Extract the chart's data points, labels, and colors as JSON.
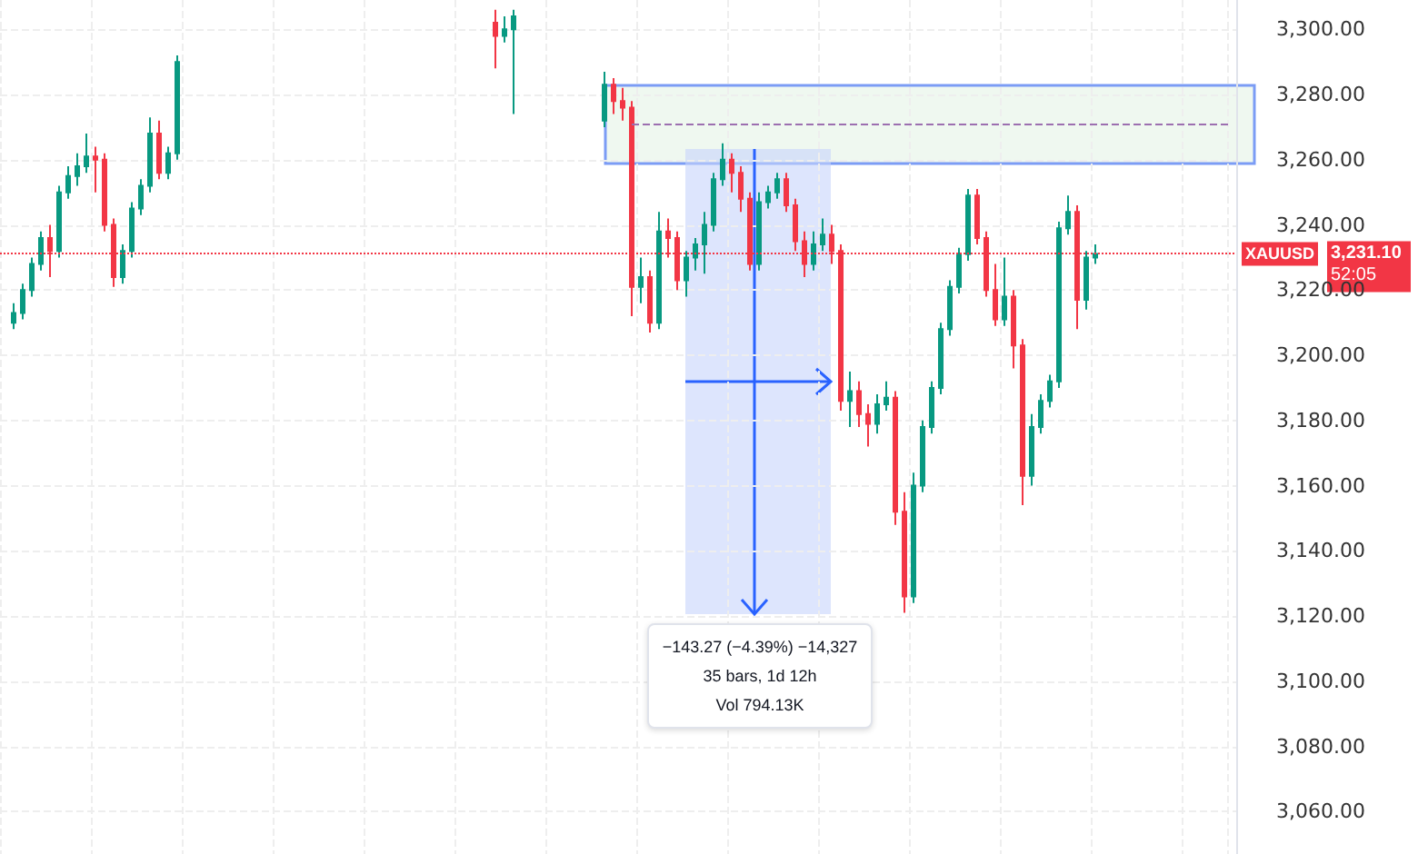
{
  "chart_data": {
    "type": "candlestick",
    "categories": [
      null,
      null,
      null,
      null,
      null,
      null,
      null,
      null,
      null,
      null,
      null,
      null,
      null,
      null,
      null,
      null,
      null,
      null,
      null,
      null,
      null,
      null,
      null,
      null,
      null,
      null,
      null,
      null,
      null,
      null,
      null,
      null,
      null,
      null,
      null,
      null,
      null,
      null,
      null,
      null,
      null,
      null,
      null,
      null,
      null,
      null,
      null,
      null,
      null,
      null,
      null,
      null,
      null,
      null,
      null,
      null,
      null,
      null,
      null,
      null,
      null,
      null,
      null,
      null,
      null,
      null,
      null,
      null,
      null,
      null,
      null,
      null,
      null,
      null,
      null,
      null,
      null,
      null,
      null,
      null,
      null,
      null,
      null,
      null,
      null,
      null,
      null,
      null,
      null,
      null,
      null,
      null,
      null,
      null,
      null,
      null,
      null,
      null,
      null,
      null,
      null,
      null,
      null,
      null,
      null,
      null,
      null,
      null,
      null,
      null,
      null,
      null,
      null,
      null,
      null,
      null,
      null,
      null,
      null,
      null,
      null,
      null,
      null,
      null,
      null,
      null,
      null,
      null,
      null,
      null,
      null,
      null,
      null,
      null,
      null,
      null
    ],
    "ohlc": [
      null,
      [
        3210,
        3216,
        3208,
        3213
      ],
      [
        3213,
        3222,
        3211,
        3220
      ],
      [
        3220,
        3230,
        3218,
        3228
      ],
      [
        3228,
        3238,
        3226,
        3236
      ],
      [
        3236,
        3240,
        3224,
        3232
      ],
      [
        3232,
        3252,
        3230,
        3250
      ],
      [
        3250,
        3258,
        3248,
        3255
      ],
      [
        3255,
        3262,
        3252,
        3258
      ],
      [
        3258,
        3268,
        3256,
        3261
      ],
      [
        3261,
        3264,
        3250,
        3260
      ],
      [
        3260,
        3262,
        3238,
        3240
      ],
      [
        3240,
        3242,
        3221,
        3224
      ],
      [
        3224,
        3234,
        3222,
        3232
      ],
      [
        3232,
        3247,
        3230,
        3245
      ],
      [
        3245,
        3254,
        3243,
        3252
      ],
      [
        3252,
        3273,
        3250,
        3268
      ],
      [
        3268,
        3272,
        3254,
        3256
      ],
      [
        3256,
        3264,
        3254,
        3262
      ],
      [
        3262,
        3292,
        3260,
        3290
      ],
      null,
      null,
      null,
      null,
      null,
      null,
      null,
      null,
      null,
      null,
      null,
      null,
      null,
      null,
      null,
      null,
      null,
      null,
      null,
      null,
      null,
      null,
      null,
      null,
      null,
      null,
      null,
      null,
      null,
      null,
      null,
      null,
      null,
      null,
      [
        3302,
        3306,
        3288,
        3298
      ],
      [
        3298,
        3304,
        3296,
        3300
      ],
      [
        3300,
        3306,
        3274,
        3304
      ],
      null,
      null,
      null,
      null,
      null,
      null,
      null,
      null,
      null,
      [
        3272,
        3287,
        3270,
        3283
      ],
      [
        3283,
        3285,
        3274,
        3278
      ],
      [
        3278,
        3282,
        3272,
        3276
      ],
      [
        3276,
        3278,
        3212,
        3221
      ],
      [
        3221,
        3230,
        3216,
        3224
      ],
      [
        3224,
        3226,
        3207,
        3210
      ],
      [
        3210,
        3244,
        3208,
        3238
      ],
      [
        3238,
        3242,
        3230,
        3236
      ],
      [
        3236,
        3238,
        3220,
        3223
      ],
      [
        3223,
        3232,
        3218,
        3230
      ],
      [
        3230,
        3236,
        3226,
        3234
      ],
      [
        3234,
        3244,
        3225,
        3240
      ],
      [
        3240,
        3256,
        3238,
        3254
      ],
      [
        3254,
        3265,
        3252,
        3260
      ],
      [
        3260,
        3262,
        3250,
        3256
      ],
      [
        3256,
        3258,
        3244,
        3248
      ],
      [
        3248,
        3250,
        3226,
        3228
      ],
      [
        3228,
        3250,
        3226,
        3247
      ],
      [
        3247,
        3252,
        3245,
        3250
      ],
      [
        3250,
        3256,
        3248,
        3254
      ],
      [
        3254,
        3256,
        3244,
        3246
      ],
      [
        3246,
        3248,
        3232,
        3235
      ],
      [
        3235,
        3238,
        3224,
        3228
      ],
      [
        3228,
        3238,
        3226,
        3234
      ],
      [
        3234,
        3242,
        3232,
        3237
      ],
      [
        3237,
        3240,
        3228,
        3232
      ],
      [
        3232,
        3234,
        3183,
        3186
      ],
      [
        3186,
        3195,
        3178,
        3189
      ],
      [
        3189,
        3192,
        3178,
        3182
      ],
      [
        3182,
        3185,
        3172,
        3179
      ],
      [
        3179,
        3188,
        3176,
        3185
      ],
      [
        3185,
        3192,
        3183,
        3187
      ],
      [
        3187,
        3189,
        3148,
        3152
      ],
      [
        3152,
        3158,
        3121,
        3126
      ],
      [
        3126,
        3164,
        3124,
        3160
      ],
      [
        3160,
        3180,
        3158,
        3178
      ],
      [
        3178,
        3192,
        3176,
        3190
      ],
      [
        3190,
        3210,
        3188,
        3208
      ],
      [
        3208,
        3223,
        3206,
        3221
      ],
      [
        3221,
        3233,
        3219,
        3231
      ],
      [
        3231,
        3251,
        3229,
        3249
      ],
      [
        3249,
        3251,
        3234,
        3236
      ],
      [
        3236,
        3238,
        3218,
        3220
      ],
      [
        3220,
        3228,
        3209,
        3211
      ],
      [
        3211,
        3230,
        3209,
        3218
      ],
      [
        3218,
        3220,
        3196,
        3203
      ],
      [
        3203,
        3205,
        3154,
        3163
      ],
      [
        3163,
        3182,
        3160,
        3178
      ],
      [
        3178,
        3188,
        3176,
        3186
      ],
      [
        3186,
        3194,
        3184,
        3192
      ],
      [
        3192,
        3241,
        3190,
        3239
      ],
      [
        3239,
        3249,
        3237,
        3244
      ],
      [
        3244,
        3246,
        3208,
        3217
      ],
      [
        3217,
        3232,
        3214,
        3230
      ],
      [
        3230,
        3234,
        3228,
        3231.1
      ],
      null,
      null,
      null,
      null,
      null,
      null,
      null,
      null,
      null,
      null,
      null,
      null,
      null,
      null,
      null
    ],
    "ylim": [
      3047,
      3309
    ],
    "yticks": [
      {
        "value": 3060,
        "label": "3,060.00"
      },
      {
        "value": 3080,
        "label": "3,080.00"
      },
      {
        "value": 3100,
        "label": "3,100.00"
      },
      {
        "value": 3120,
        "label": "3,120.00"
      },
      {
        "value": 3140,
        "label": "3,140.00"
      },
      {
        "value": 3160,
        "label": "3,160.00"
      },
      {
        "value": 3180,
        "label": "3,180.00"
      },
      {
        "value": 3200,
        "label": "3,200.00"
      },
      {
        "value": 3220,
        "label": "3,220.00"
      },
      {
        "value": 3240,
        "label": "3,240.00"
      },
      {
        "value": 3260,
        "label": "3,260.00"
      },
      {
        "value": 3280,
        "label": "3,280.00"
      },
      {
        "value": 3300,
        "label": "3,300.00"
      }
    ],
    "ref_lines": [
      {
        "axis": "y",
        "value": 3231.1,
        "label": "XAUUSD",
        "color": "#f23645",
        "line_style": "dotted"
      },
      {
        "axis": "y",
        "value": 3271,
        "color": "#9c6fb0",
        "line_style": "dashed"
      }
    ],
    "annotations": [
      "−143.27 (−4.39%) −14,327",
      "35 bars, 1d 12h",
      "Vol 794.13K",
      "3,231.10",
      "52:05"
    ],
    "grid": true,
    "tick_labels": "y"
  }
}
